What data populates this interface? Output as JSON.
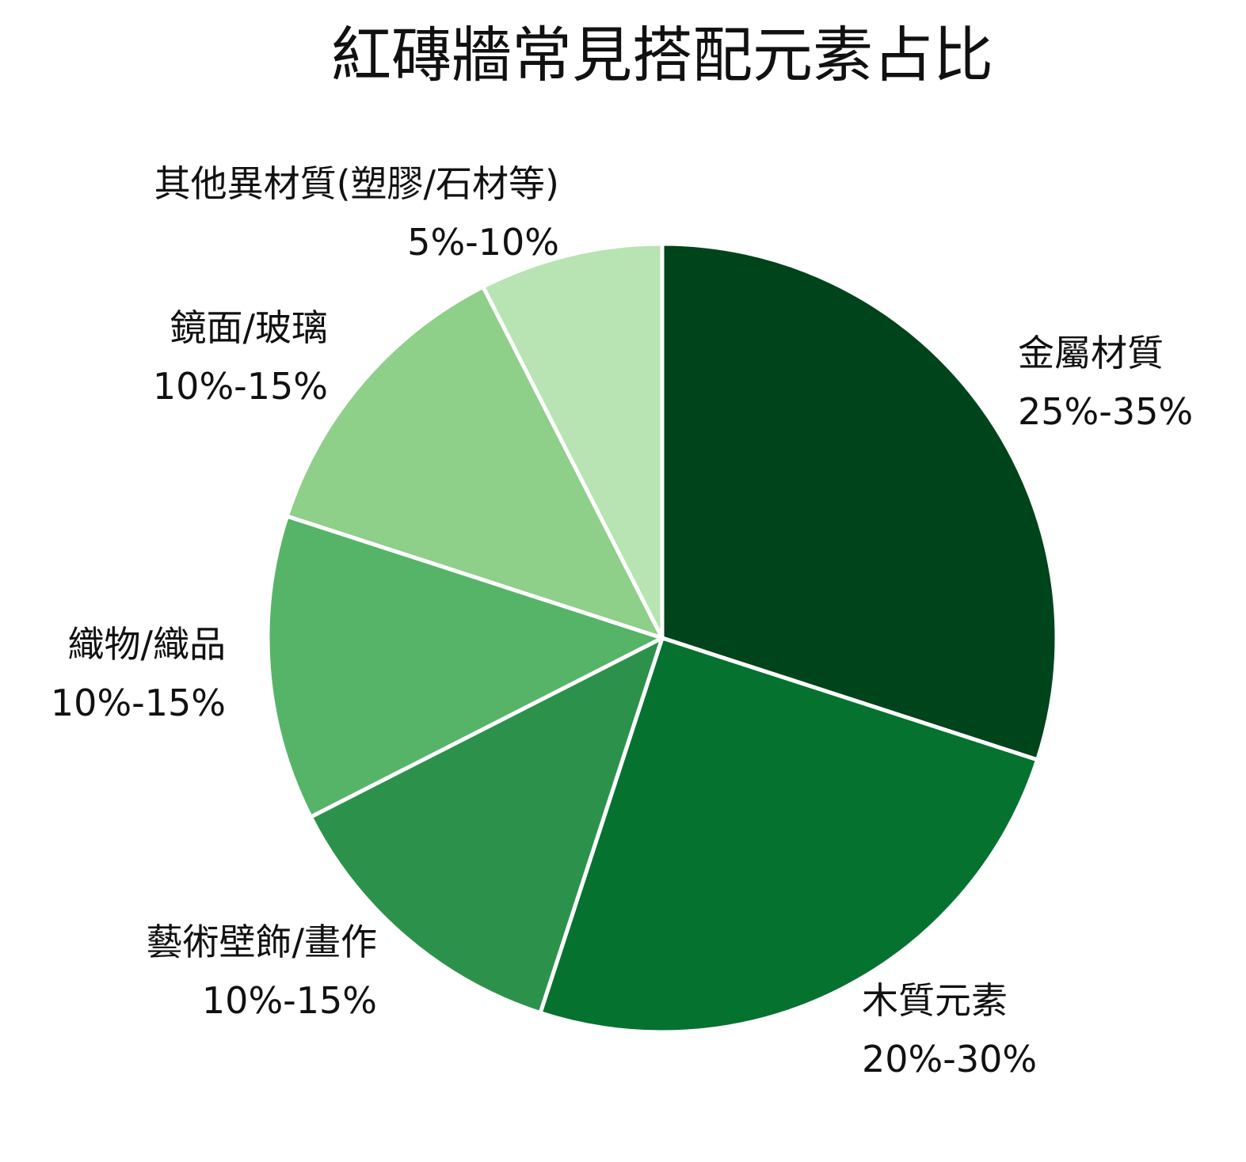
{
  "chart_data": {
    "type": "pie",
    "title": "紅磚牆常見搭配元素占比",
    "slices": [
      {
        "name": "金屬材質",
        "range_label": "25%-35%",
        "value": 30,
        "color": "#00441b"
      },
      {
        "name": "木質元素",
        "range_label": "20%-30%",
        "value": 25,
        "color": "#067230"
      },
      {
        "name": "藝術壁飾/畫作",
        "range_label": "10%-15%",
        "value": 12.5,
        "color": "#2c924b"
      },
      {
        "name": "織物/織品",
        "range_label": "10%-15%",
        "value": 12.5,
        "color": "#56b468"
      },
      {
        "name": "鏡面/玻璃",
        "range_label": "10%-15%",
        "value": 12.5,
        "color": "#8ecf8a"
      },
      {
        "name": "其他異材質(塑膠/石材等)",
        "range_label": "5%-10%",
        "value": 7.5,
        "color": "#b8e3b3"
      }
    ],
    "legend": "none",
    "start_angle": "12 o'clock",
    "direction": "clockwise"
  }
}
